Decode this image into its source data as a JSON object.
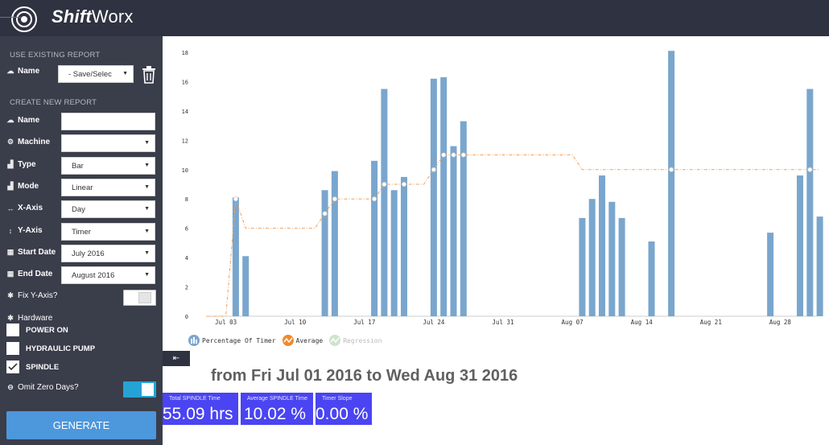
{
  "app": {
    "brand_bold": "Shift",
    "brand_thin": "Worx"
  },
  "sidebar": {
    "existing_title": "USE EXISTING REPORT",
    "existing_name_label": "Name",
    "existing_name_value": "- Save/Selec",
    "new_title": "CREATE NEW REPORT",
    "fields": [
      {
        "label": "Name",
        "icon": "cloud-icon",
        "glyph": "☁",
        "value": "",
        "select": false
      },
      {
        "label": "Machine",
        "icon": "cogs-icon",
        "glyph": "⚙",
        "value": "",
        "select": true
      },
      {
        "label": "Type",
        "icon": "area-chart-icon",
        "glyph": "▟",
        "value": "Bar",
        "select": true
      },
      {
        "label": "Mode",
        "icon": "area-chart-icon",
        "glyph": "▟",
        "value": "Linear",
        "select": true
      },
      {
        "label": "X-Axis",
        "icon": "horizontal-arrows-icon",
        "glyph": "↔",
        "value": "Day",
        "select": true
      },
      {
        "label": "Y-Axis",
        "icon": "vertical-arrows-icon",
        "glyph": "↕",
        "value": "Timer",
        "select": true
      },
      {
        "label": "Start Date",
        "icon": "calendar-icon",
        "glyph": "▦",
        "value": "July 2016",
        "select": true
      },
      {
        "label": "End Date",
        "icon": "calendar-icon",
        "glyph": "▦",
        "value": "August 2016",
        "select": true
      }
    ],
    "fix_y_label": "Fix Y-Axis?",
    "fix_y_on": false,
    "hardware_label": "Hardware",
    "hardware": [
      {
        "label": "POWER ON",
        "checked": false
      },
      {
        "label": "HYDRAULIC PUMP",
        "checked": false
      },
      {
        "label": "SPINDLE",
        "checked": true
      }
    ],
    "omit_zero_label": "Omit Zero Days?",
    "omit_zero_on": true,
    "generate_label": "GENERATE"
  },
  "summary": {
    "range_title": "from Fri Jul 01 2016 to Wed Aug 31 2016",
    "stats": [
      {
        "label": "Total SPINDLE Time",
        "value": "55.09 hrs"
      },
      {
        "label": "Average SPINDLE Time",
        "value": "10.02 %"
      },
      {
        "label": "Timer Slope",
        "value": "0.00 %"
      }
    ]
  },
  "chart_data": {
    "type": "bar",
    "x_start": "2016-07-01",
    "x_end": "2016-08-31",
    "ylim": [
      0,
      18
    ],
    "yticks": [
      0,
      2,
      4,
      6,
      8,
      10,
      12,
      14,
      16,
      18
    ],
    "xtick_labels": [
      {
        "label": "Jul 03",
        "date": "2016-07-03"
      },
      {
        "label": "Jul 10",
        "date": "2016-07-10"
      },
      {
        "label": "Jul 17",
        "date": "2016-07-17"
      },
      {
        "label": "Jul 24",
        "date": "2016-07-24"
      },
      {
        "label": "Jul 31",
        "date": "2016-07-31"
      },
      {
        "label": "Aug 07",
        "date": "2016-08-07"
      },
      {
        "label": "Aug 14",
        "date": "2016-08-14"
      },
      {
        "label": "Aug 21",
        "date": "2016-08-21"
      },
      {
        "label": "Aug 28",
        "date": "2016-08-28"
      }
    ],
    "series": [
      {
        "name": "Percentage Of Timer",
        "color": "#7aa6cd",
        "points": [
          {
            "date": "2016-07-04",
            "value": 8.1
          },
          {
            "date": "2016-07-05",
            "value": 4.1
          },
          {
            "date": "2016-07-13",
            "value": 8.6
          },
          {
            "date": "2016-07-14",
            "value": 9.9
          },
          {
            "date": "2016-07-18",
            "value": 10.6
          },
          {
            "date": "2016-07-19",
            "value": 15.5
          },
          {
            "date": "2016-07-20",
            "value": 8.6
          },
          {
            "date": "2016-07-21",
            "value": 9.5
          },
          {
            "date": "2016-07-24",
            "value": 16.2
          },
          {
            "date": "2016-07-25",
            "value": 16.3
          },
          {
            "date": "2016-07-26",
            "value": 11.6
          },
          {
            "date": "2016-07-27",
            "value": 13.3
          },
          {
            "date": "2016-08-08",
            "value": 6.7
          },
          {
            "date": "2016-08-09",
            "value": 8.0
          },
          {
            "date": "2016-08-10",
            "value": 9.6
          },
          {
            "date": "2016-08-11",
            "value": 7.8
          },
          {
            "date": "2016-08-12",
            "value": 6.7
          },
          {
            "date": "2016-08-15",
            "value": 5.1
          },
          {
            "date": "2016-08-17",
            "value": 18.1
          },
          {
            "date": "2016-08-27",
            "value": 5.7
          },
          {
            "date": "2016-08-30",
            "value": 9.6
          },
          {
            "date": "2016-08-31",
            "value": 15.5
          },
          {
            "date": "2016-09-01",
            "value": 6.8
          }
        ]
      },
      {
        "name": "Average",
        "color": "#f4a05a",
        "points": [
          {
            "date": "2016-07-01",
            "value": 0
          },
          {
            "date": "2016-07-03",
            "value": 0
          },
          {
            "date": "2016-07-04",
            "value": 8.0
          },
          {
            "date": "2016-07-05",
            "value": 6.0
          },
          {
            "date": "2016-07-12",
            "value": 6.0
          },
          {
            "date": "2016-07-13",
            "value": 7.0
          },
          {
            "date": "2016-07-14",
            "value": 8.0
          },
          {
            "date": "2016-07-18",
            "value": 8.0
          },
          {
            "date": "2016-07-19",
            "value": 9.0
          },
          {
            "date": "2016-07-21",
            "value": 9.0
          },
          {
            "date": "2016-07-23",
            "value": 9.0
          },
          {
            "date": "2016-07-24",
            "value": 10.0
          },
          {
            "date": "2016-07-25",
            "value": 11.0
          },
          {
            "date": "2016-07-27",
            "value": 11.0
          },
          {
            "date": "2016-08-07",
            "value": 11.0
          },
          {
            "date": "2016-08-08",
            "value": 10.0
          },
          {
            "date": "2016-09-01",
            "value": 10.0
          }
        ],
        "markers": [
          "2016-07-04",
          "2016-07-13",
          "2016-07-14",
          "2016-07-18",
          "2016-07-19",
          "2016-07-21",
          "2016-07-24",
          "2016-07-25",
          "2016-07-26",
          "2016-07-27",
          "2016-08-17",
          "2016-08-31"
        ]
      },
      {
        "name": "Regression",
        "color": "#b6d6b4",
        "points": []
      }
    ],
    "legend_position": "bottom-left",
    "grid": false
  }
}
